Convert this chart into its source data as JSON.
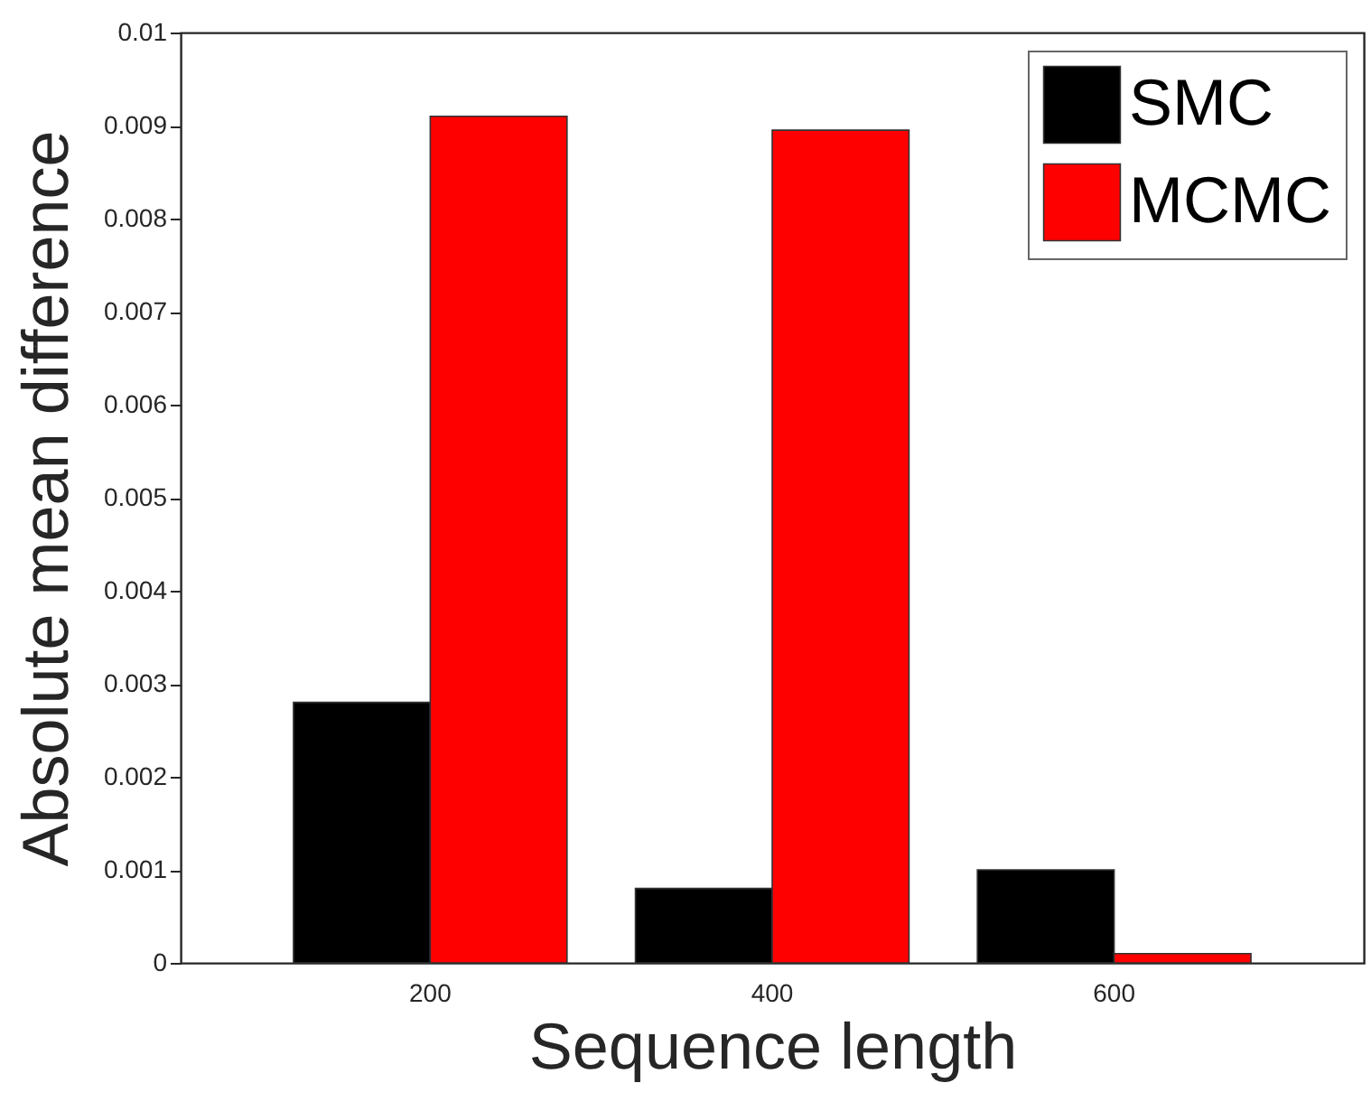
{
  "chart_data": {
    "type": "bar",
    "xlabel": "Sequence length",
    "ylabel": "Absolute mean difference",
    "categories": [
      "200",
      "400",
      "600"
    ],
    "series": [
      {
        "name": "SMC",
        "color": "#000000",
        "values": [
          0.0028,
          0.0008,
          0.001
        ]
      },
      {
        "name": "MCMC",
        "color": "#ff0000",
        "values": [
          0.0091,
          0.00895,
          0.0001
        ]
      }
    ],
    "ylim": [
      0,
      0.01
    ],
    "yticks": [
      0,
      0.001,
      0.002,
      0.003,
      0.004,
      0.005,
      0.006,
      0.007,
      0.008,
      0.009,
      0.01
    ],
    "legend": "top right"
  }
}
